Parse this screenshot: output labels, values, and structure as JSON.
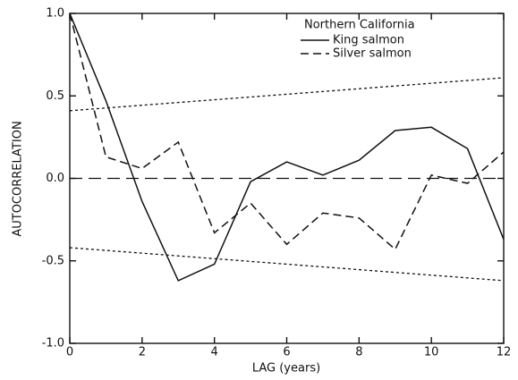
{
  "chart_data": {
    "type": "line",
    "xlabel": "LAG (years)",
    "ylabel": "AUTOCORRELATION",
    "legend_title": "Northern California",
    "x": [
      0,
      1,
      2,
      3,
      4,
      5,
      6,
      7,
      8,
      9,
      10,
      11,
      12
    ],
    "series": [
      {
        "name": "King salmon",
        "color": "#111111",
        "dash": "solid",
        "values": [
          1.0,
          0.47,
          -0.14,
          -0.62,
          -0.52,
          -0.02,
          0.1,
          0.02,
          0.11,
          0.29,
          0.31,
          0.18,
          -0.37
        ]
      },
      {
        "name": "Silver salmon",
        "color": "#111111",
        "dash": "dashed",
        "values": [
          1.0,
          0.13,
          0.06,
          0.22,
          -0.33,
          -0.15,
          -0.4,
          -0.21,
          -0.24,
          -0.43,
          0.02,
          -0.03,
          0.16
        ]
      }
    ],
    "bounds": {
      "x": [
        0,
        12
      ],
      "upper": [
        0.41,
        0.61
      ],
      "lower": [
        -0.42,
        -0.62
      ]
    },
    "hline": 0,
    "xlim": [
      0,
      12
    ],
    "xticks": [
      0,
      2,
      4,
      6,
      8,
      10,
      12
    ],
    "ylim": [
      -1,
      1
    ],
    "yticks": [
      {
        "value": 1,
        "label": "1.0"
      },
      0.5,
      {
        "value": 0,
        "label": "0.0"
      },
      -0.5,
      {
        "value": -1,
        "label": "-1.0"
      }
    ],
    "legend_position": "upper right",
    "grid": false
  }
}
